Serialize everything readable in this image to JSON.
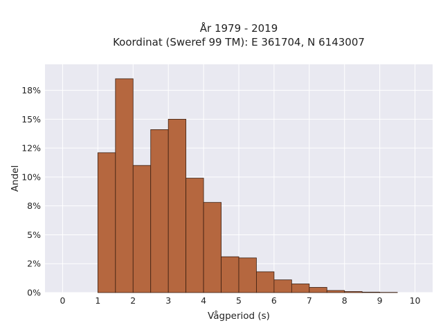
{
  "chart_data": {
    "type": "bar",
    "title": "År 1979 - 2019",
    "subtitle": "Koordinat (Sweref 99 TM): E 361704, N 6143007",
    "xlabel": "Vågperiod (s)",
    "ylabel": "Andel",
    "xlim": [
      -0.5,
      10.5
    ],
    "ylim": [
      0,
      0.1975
    ],
    "x_ticks": [
      0,
      1,
      2,
      3,
      4,
      5,
      6,
      7,
      8,
      9,
      10
    ],
    "y_ticks": [
      0,
      0.025,
      0.05,
      0.075,
      0.1,
      0.125,
      0.15,
      0.175
    ],
    "y_tick_labels": [
      "0%",
      "2%",
      "5%",
      "8%",
      "10%",
      "12%",
      "15%",
      "18%"
    ],
    "bin_width": 0.5,
    "bins": [
      {
        "x0": 1.0,
        "x1": 1.5,
        "value": 0.121
      },
      {
        "x0": 1.5,
        "x1": 2.0,
        "value": 0.185
      },
      {
        "x0": 2.0,
        "x1": 2.5,
        "value": 0.11
      },
      {
        "x0": 2.5,
        "x1": 3.0,
        "value": 0.141
      },
      {
        "x0": 3.0,
        "x1": 3.5,
        "value": 0.15
      },
      {
        "x0": 3.5,
        "x1": 4.0,
        "value": 0.099
      },
      {
        "x0": 4.0,
        "x1": 4.5,
        "value": 0.078
      },
      {
        "x0": 4.5,
        "x1": 5.0,
        "value": 0.031
      },
      {
        "x0": 5.0,
        "x1": 5.5,
        "value": 0.03
      },
      {
        "x0": 5.5,
        "x1": 6.0,
        "value": 0.018
      },
      {
        "x0": 6.0,
        "x1": 6.5,
        "value": 0.011
      },
      {
        "x0": 6.5,
        "x1": 7.0,
        "value": 0.0075
      },
      {
        "x0": 7.0,
        "x1": 7.5,
        "value": 0.0045
      },
      {
        "x0": 7.5,
        "x1": 8.0,
        "value": 0.0018
      },
      {
        "x0": 8.0,
        "x1": 8.5,
        "value": 0.0009
      },
      {
        "x0": 8.5,
        "x1": 9.0,
        "value": 0.0004
      },
      {
        "x0": 9.0,
        "x1": 9.5,
        "value": 0.0002
      }
    ],
    "grid": true,
    "legend": "none",
    "colors": {
      "bar_fill": "#b5673f",
      "bar_edge": "#3a1e10",
      "plot_background": "#e9e9f1",
      "grid": "#ffffff"
    }
  }
}
